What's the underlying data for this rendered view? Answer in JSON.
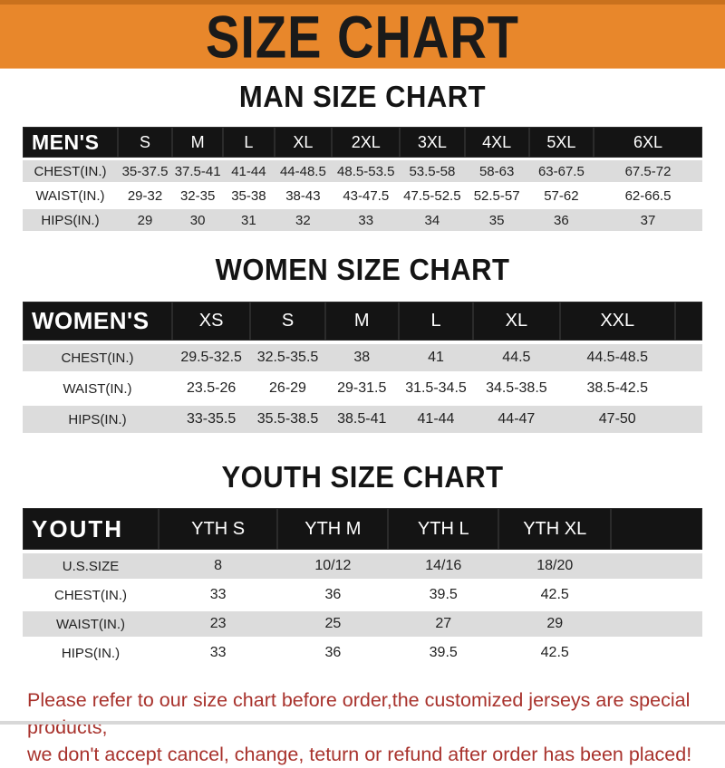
{
  "header": {
    "title": "SIZE CHART"
  },
  "sections": [
    {
      "heading": "MAN SIZE CHART",
      "corner_label": "MEN'S",
      "columns": [
        "S",
        "M",
        "L",
        "XL",
        "2XL",
        "3XL",
        "4XL",
        "5XL",
        "6XL"
      ],
      "rows": [
        {
          "label": "CHEST(IN.)",
          "values": [
            "35-37.5",
            "37.5-41",
            "41-44",
            "44-48.5",
            "48.5-53.5",
            "53.5-58",
            "58-63",
            "63-67.5",
            "67.5-72"
          ]
        },
        {
          "label": "WAIST(IN.)",
          "values": [
            "29-32",
            "32-35",
            "35-38",
            "38-43",
            "43-47.5",
            "47.5-52.5",
            "52.5-57",
            "57-62",
            "62-66.5"
          ]
        },
        {
          "label": "HIPS(IN.)",
          "values": [
            "29",
            "30",
            "31",
            "32",
            "33",
            "34",
            "35",
            "36",
            "37"
          ]
        }
      ]
    },
    {
      "heading": "WOMEN SIZE CHART",
      "corner_label": "WOMEN'S",
      "columns": [
        "XS",
        "S",
        "M",
        "L",
        "XL",
        "XXL"
      ],
      "rows": [
        {
          "label": "CHEST(IN.)",
          "values": [
            "29.5-32.5",
            "32.5-35.5",
            "38",
            "41",
            "44.5",
            "44.5-48.5"
          ]
        },
        {
          "label": "WAIST(IN.)",
          "values": [
            "23.5-26",
            "26-29",
            "29-31.5",
            "31.5-34.5",
            "34.5-38.5",
            "38.5-42.5"
          ]
        },
        {
          "label": "HIPS(IN.)",
          "values": [
            "33-35.5",
            "35.5-38.5",
            "38.5-41",
            "41-44",
            "44-47",
            "47-50"
          ]
        }
      ]
    },
    {
      "heading": "YOUTH SIZE CHART",
      "corner_label": "YOUTH",
      "columns": [
        "YTH S",
        "YTH M",
        "YTH L",
        "YTH XL"
      ],
      "rows": [
        {
          "label": "U.S.SIZE",
          "values": [
            "8",
            "10/12",
            "14/16",
            "18/20"
          ]
        },
        {
          "label": "CHEST(IN.)",
          "values": [
            "33",
            "36",
            "39.5",
            "42.5"
          ]
        },
        {
          "label": "WAIST(IN.)",
          "values": [
            "23",
            "25",
            "27",
            "29"
          ]
        },
        {
          "label": "HIPS(IN.)",
          "values": [
            "33",
            "36",
            "39.5",
            "42.5"
          ]
        }
      ]
    }
  ],
  "footer": {
    "line1": "Please refer to our size chart before order,the customized jerseys are special products,",
    "line2": "we don't accept cancel, change, teturn or refund after order has been placed!"
  },
  "colors": {
    "banner_orange": "#E8872B",
    "banner_border": "#C9711D",
    "table_bar_black": "#141414",
    "row_gray": "#DCDCDC",
    "note_red": "#A8322C"
  }
}
